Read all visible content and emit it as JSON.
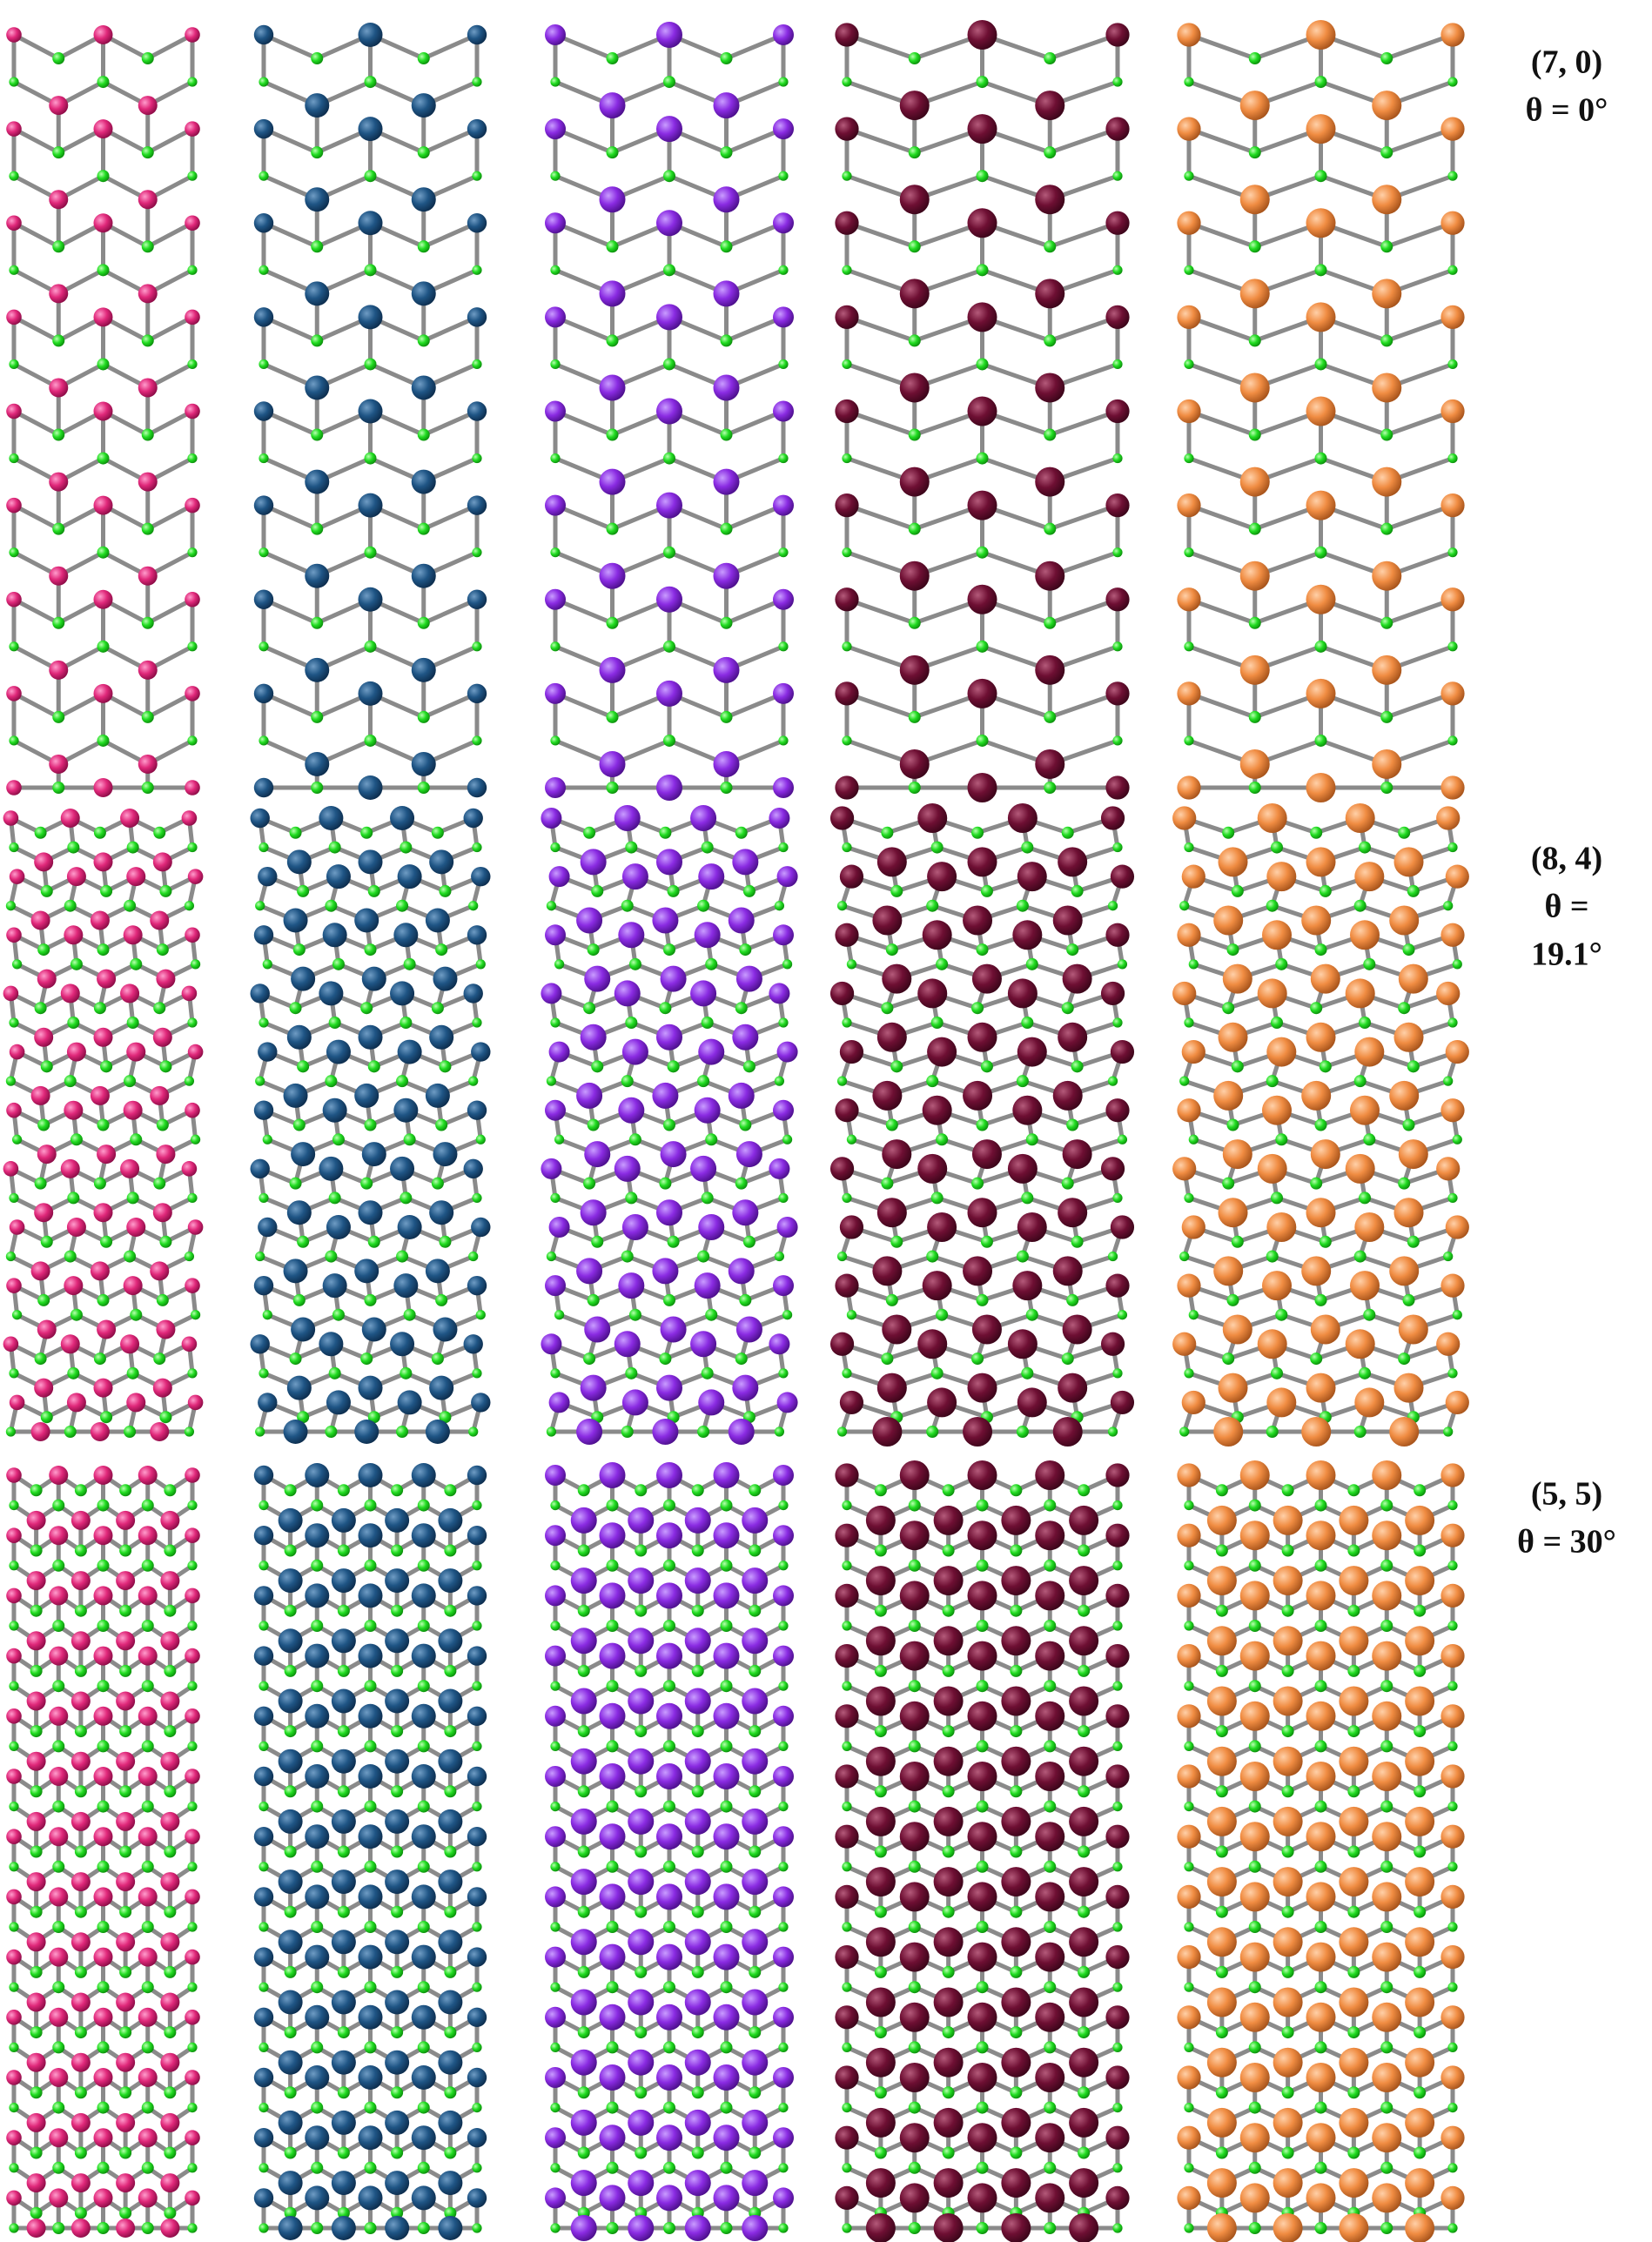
{
  "rows": [
    {
      "label_lines": [
        "(7, 0)",
        "θ = 0°"
      ]
    },
    {
      "label_lines": [
        "(8, 4)",
        "θ =",
        "19.1°"
      ]
    },
    {
      "label_lines": [
        "(5, 5)",
        "θ = 30°"
      ]
    }
  ]
}
